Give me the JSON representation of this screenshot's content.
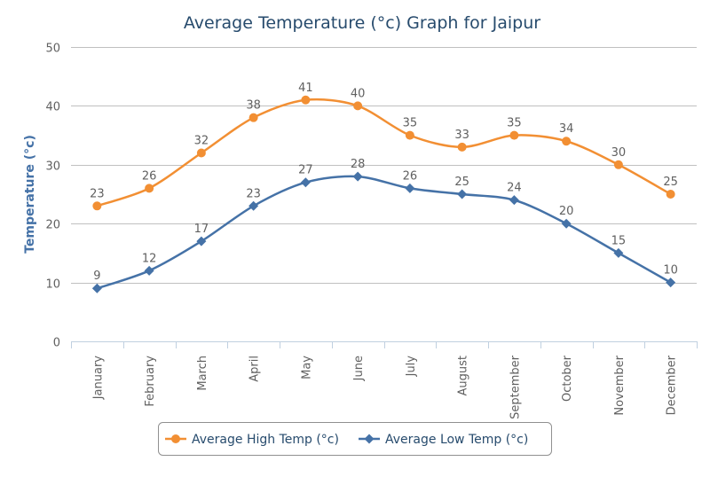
{
  "chart_data": {
    "type": "line",
    "title": "Average Temperature (°c) Graph for Jaipur",
    "xlabel": "",
    "ylabel": "Temperature (°c)",
    "ylim": [
      0,
      50
    ],
    "yticks": [
      0,
      10,
      20,
      30,
      40,
      50
    ],
    "grid": true,
    "legend": "bottom-center",
    "categories": [
      "January",
      "February",
      "March",
      "April",
      "May",
      "June",
      "July",
      "August",
      "September",
      "October",
      "November",
      "December"
    ],
    "series": [
      {
        "name": "Average High Temp (°c)",
        "color": "#f28f33",
        "marker": "circle",
        "values": [
          23,
          26,
          32,
          38,
          41,
          40,
          35,
          33,
          35,
          34,
          30,
          25
        ]
      },
      {
        "name": "Average Low Temp (°c)",
        "color": "#4572a7",
        "marker": "diamond",
        "values": [
          9,
          12,
          17,
          23,
          27,
          28,
          26,
          25,
          24,
          20,
          15,
          10
        ]
      }
    ]
  }
}
